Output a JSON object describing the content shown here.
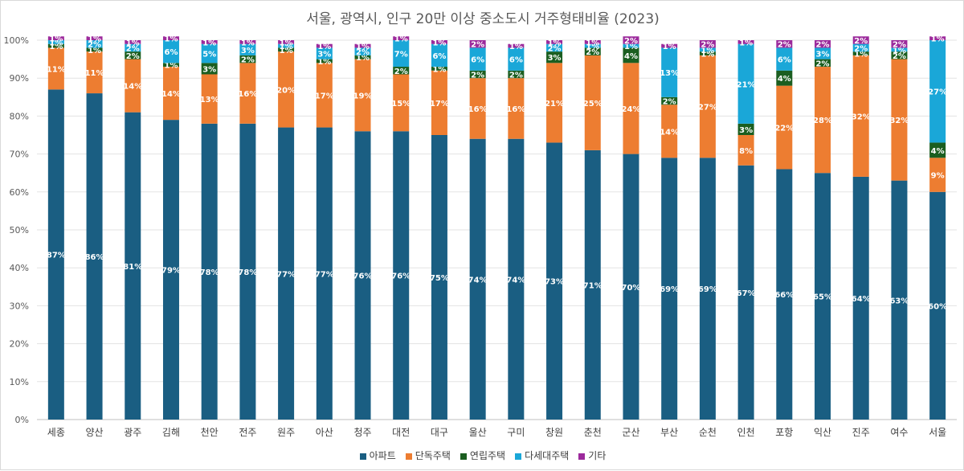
{
  "chart_data": {
    "type": "bar",
    "stacked": true,
    "title": "서울, 광역시, 인구 20만 이상 중소도시 거주형태비율 (2023)",
    "xlabel": "",
    "ylabel": "",
    "ylim": [
      0,
      100
    ],
    "yticks": [
      "0%",
      "10%",
      "20%",
      "30%",
      "40%",
      "50%",
      "60%",
      "70%",
      "80%",
      "90%",
      "100%"
    ],
    "grid": true,
    "legend_position": "bottom",
    "categories": [
      "세종",
      "양산",
      "광주",
      "김해",
      "천안",
      "전주",
      "원주",
      "아산",
      "청주",
      "대전",
      "대구",
      "울산",
      "구미",
      "창원",
      "춘천",
      "군산",
      "부산",
      "순천",
      "인천",
      "포항",
      "익산",
      "진주",
      "여수",
      "서울"
    ],
    "series": [
      {
        "name": "아파트",
        "color": "#1a5e82",
        "values": [
          87,
          86,
          81,
          79,
          78,
          78,
          77,
          77,
          76,
          76,
          75,
          74,
          74,
          73,
          71,
          70,
          69,
          69,
          67,
          66,
          65,
          64,
          63,
          60
        ]
      },
      {
        "name": "단독주택",
        "color": "#ed7d31",
        "values": [
          11,
          11,
          14,
          14,
          13,
          16,
          20,
          17,
          19,
          15,
          17,
          16,
          16,
          21,
          25,
          24,
          14,
          27,
          8,
          22,
          28,
          32,
          32,
          9
        ]
      },
      {
        "name": "연립주택",
        "color": "#1b5e20",
        "values": [
          1,
          1,
          2,
          1,
          3,
          2,
          1,
          1,
          1,
          2,
          1,
          2,
          2,
          3,
          2,
          4,
          2,
          1,
          3,
          4,
          2,
          1,
          2,
          4
        ]
      },
      {
        "name": "다세대주택",
        "color": "#1aa7d8",
        "values": [
          1,
          2,
          2,
          6,
          5,
          3,
          1,
          3,
          2,
          7,
          6,
          6,
          6,
          2,
          1,
          1,
          13,
          1,
          21,
          6,
          3,
          2,
          1,
          27
        ]
      },
      {
        "name": "기타",
        "color": "#9c2a9c",
        "values": [
          1,
          1,
          1,
          1,
          1,
          1,
          1,
          1,
          1,
          1,
          1,
          2,
          1,
          1,
          1,
          2,
          1,
          2,
          1,
          2,
          2,
          2,
          2,
          1
        ]
      }
    ]
  }
}
